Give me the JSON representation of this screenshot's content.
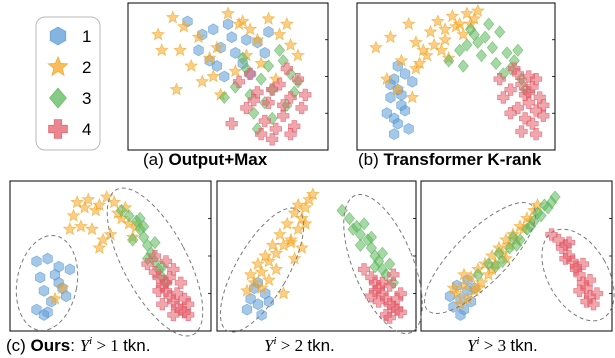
{
  "legend": {
    "entries": [
      {
        "label": "1",
        "marker": "hexagon",
        "color": "#5b9bd5"
      },
      {
        "label": "2",
        "marker": "star",
        "color": "#f5a623"
      },
      {
        "label": "3",
        "marker": "diamond",
        "color": "#5cb85c"
      },
      {
        "label": "4",
        "marker": "plus",
        "color": "#e35d6a"
      }
    ]
  },
  "captions": {
    "a": {
      "prefix": "(a) ",
      "bold": "Output+Max"
    },
    "b": {
      "prefix": "(b) ",
      "bold": "Transformer K-rank"
    },
    "c": {
      "prefix": "(c) ",
      "bold": "Ours",
      "sep": ": ",
      "sym": "Y",
      "sup": "i",
      "rel": " > 1 ",
      "unit": "tkn."
    },
    "d": {
      "sym": "Y",
      "sup": "i",
      "rel": " > 2 ",
      "unit": "tkn."
    },
    "e": {
      "sym": "Y",
      "sup": "i",
      "rel": " > 3 ",
      "unit": "tkn."
    }
  },
  "colors": {
    "1": "#5b9bd5",
    "2": "#f5a623",
    "3": "#5cb85c",
    "4": "#e35d6a"
  },
  "chart_data": [
    {
      "type": "scatter",
      "title": "(a) Output+Max",
      "xlim": [
        0,
        100
      ],
      "ylim": [
        0,
        100
      ],
      "grid": false,
      "legend": "none",
      "series": [
        {
          "name": "1",
          "x": [
            28,
            42,
            52,
            60,
            34,
            46,
            40,
            66,
            70,
            50,
            58,
            62,
            44,
            72,
            54,
            36,
            48
          ],
          "y": [
            92,
            86,
            80,
            78,
            70,
            72,
            62,
            76,
            68,
            90,
            60,
            52,
            58,
            84,
            68,
            82,
            50
          ]
        },
        {
          "name": "2",
          "x": [
            20,
            26,
            14,
            34,
            40,
            50,
            56,
            62,
            72,
            78,
            84,
            30,
            44,
            60,
            68,
            22,
            12,
            36,
            54,
            76,
            82,
            46,
            58,
            66,
            88,
            24,
            42
          ],
          "y": [
            95,
            88,
            70,
            80,
            64,
            98,
            90,
            86,
            94,
            82,
            74,
            58,
            72,
            66,
            60,
            40,
            82,
            46,
            54,
            48,
            90,
            36,
            92,
            78,
            66,
            70,
            50
          ]
        },
        {
          "name": "3",
          "x": [
            60,
            68,
            74,
            80,
            62,
            84,
            70,
            54,
            78,
            64,
            88,
            74,
            72,
            48,
            82,
            58,
            66,
            86
          ],
          "y": [
            56,
            48,
            40,
            62,
            36,
            52,
            30,
            42,
            70,
            22,
            46,
            18,
            58,
            34,
            28,
            64,
            10,
            38
          ]
        },
        {
          "name": "4",
          "x": [
            56,
            66,
            72,
            78,
            80,
            84,
            88,
            90,
            70,
            62,
            76,
            82,
            60,
            86,
            74,
            68,
            92,
            80,
            64,
            52,
            74,
            84
          ],
          "y": [
            46,
            38,
            30,
            44,
            20,
            34,
            48,
            26,
            16,
            52,
            10,
            56,
            26,
            12,
            40,
            6,
            36,
            28,
            32,
            14,
            2,
            6
          ]
        }
      ]
    },
    {
      "type": "scatter",
      "title": "(b) Transformer K-rank",
      "xlim": [
        0,
        100
      ],
      "ylim": [
        0,
        100
      ],
      "grid": false,
      "legend": "none",
      "series": [
        {
          "name": "1",
          "x": [
            16,
            18,
            14,
            20,
            12,
            16,
            22,
            18,
            24,
            20,
            14,
            22,
            18,
            16,
            26
          ],
          "y": [
            48,
            40,
            34,
            28,
            22,
            18,
            52,
            14,
            10,
            36,
            44,
            24,
            58,
            6,
            46
          ]
        },
        {
          "name": "2",
          "x": [
            6,
            14,
            20,
            24,
            28,
            32,
            36,
            40,
            44,
            48,
            52,
            56,
            60,
            28,
            34,
            38,
            44,
            50,
            12,
            18,
            26,
            30,
            42,
            54,
            58,
            46,
            62
          ],
          "y": [
            72,
            80,
            62,
            90,
            76,
            70,
            84,
            92,
            86,
            96,
            90,
            98,
            94,
            56,
            66,
            74,
            78,
            88,
            48,
            40,
            34,
            60,
            70,
            82,
            90,
            64,
            100
          ]
        },
        {
          "name": "3",
          "x": [
            46,
            52,
            56,
            60,
            64,
            66,
            70,
            72,
            74,
            78,
            80,
            82,
            84,
            86,
            68,
            76,
            62,
            58,
            88,
            54
          ],
          "y": [
            62,
            70,
            74,
            82,
            66,
            80,
            72,
            60,
            84,
            68,
            56,
            62,
            70,
            48,
            90,
            52,
            76,
            86,
            40,
            58
          ]
        },
        {
          "name": "4",
          "x": [
            74,
            80,
            84,
            86,
            88,
            90,
            92,
            94,
            96,
            98,
            84,
            88,
            92,
            82,
            76,
            90,
            94,
            86,
            80,
            98,
            94,
            90
          ],
          "y": [
            48,
            40,
            52,
            44,
            36,
            30,
            42,
            24,
            34,
            28,
            26,
            18,
            14,
            56,
            34,
            50,
            48,
            8,
            22,
            20,
            6,
            38
          ]
        }
      ]
    },
    {
      "type": "scatter",
      "title": "(c) Ours: Y^i > 1 tkn.",
      "xlim": [
        0,
        100
      ],
      "ylim": [
        0,
        100
      ],
      "grid": false,
      "legend": "none",
      "series": [
        {
          "name": "1",
          "x": [
            10,
            16,
            22,
            28,
            12,
            20,
            14,
            18,
            24,
            10,
            26,
            16,
            22,
            14
          ],
          "y": [
            46,
            48,
            42,
            40,
            34,
            36,
            24,
            16,
            26,
            10,
            20,
            8,
            30,
            6
          ]
        },
        {
          "name": "2",
          "x": [
            30,
            36,
            38,
            28,
            34,
            42,
            44,
            48,
            52,
            56,
            60,
            62,
            46,
            40,
            54,
            58,
            50,
            64,
            32,
            24,
            20,
            44
          ],
          "y": [
            80,
            86,
            92,
            70,
            72,
            84,
            88,
            94,
            90,
            78,
            74,
            64,
            62,
            70,
            82,
            86,
            66,
            72,
            90,
            26,
            18,
            56
          ]
        },
        {
          "name": "3",
          "x": [
            56,
            60,
            64,
            66,
            68,
            70,
            72,
            74,
            76,
            78,
            80,
            62,
            68,
            74,
            70,
            66,
            78
          ],
          "y": [
            84,
            80,
            76,
            70,
            64,
            58,
            52,
            46,
            40,
            34,
            30,
            62,
            72,
            60,
            48,
            78,
            42
          ]
        },
        {
          "name": "4",
          "x": [
            70,
            74,
            76,
            78,
            80,
            82,
            84,
            86,
            88,
            90,
            92,
            76,
            80,
            84,
            86,
            90,
            82,
            78,
            88,
            74,
            92,
            84,
            80
          ],
          "y": [
            44,
            38,
            34,
            28,
            24,
            20,
            16,
            12,
            10,
            8,
            6,
            24,
            30,
            40,
            22,
            18,
            34,
            14,
            30,
            50,
            14,
            6,
            46
          ]
        }
      ]
    },
    {
      "type": "scatter",
      "title": "Y^i > 2 tkn.",
      "xlim": [
        0,
        100
      ],
      "ylim": [
        0,
        100
      ],
      "grid": false,
      "legend": "none",
      "series": [
        {
          "name": "1",
          "x": [
            14,
            18,
            22,
            12,
            16,
            20,
            24,
            18
          ],
          "y": [
            18,
            14,
            22,
            10,
            26,
            6,
            16,
            30
          ]
        },
        {
          "name": "2",
          "x": [
            16,
            20,
            24,
            28,
            32,
            36,
            40,
            42,
            44,
            46,
            38,
            34,
            30,
            26,
            22,
            18,
            14,
            12,
            44,
            40,
            36,
            28,
            24,
            20,
            48,
            42,
            38,
            32
          ],
          "y": [
            30,
            38,
            46,
            52,
            58,
            62,
            70,
            78,
            86,
            92,
            82,
            74,
            66,
            58,
            50,
            44,
            36,
            24,
            74,
            88,
            60,
            40,
            32,
            26,
            96,
            56,
            48,
            22
          ]
        },
        {
          "name": "3",
          "x": [
            64,
            68,
            72,
            74,
            78,
            80,
            82,
            84,
            86,
            88,
            70,
            76,
            80,
            86,
            90,
            92,
            74,
            82
          ],
          "y": [
            84,
            78,
            72,
            66,
            62,
            56,
            50,
            46,
            40,
            36,
            70,
            74,
            64,
            52,
            44,
            30,
            58,
            42
          ]
        },
        {
          "name": "4",
          "x": [
            76,
            80,
            82,
            84,
            86,
            88,
            90,
            92,
            94,
            96,
            82,
            86,
            90,
            94,
            88,
            84,
            92,
            80,
            96,
            90
          ],
          "y": [
            40,
            34,
            30,
            26,
            22,
            18,
            14,
            12,
            10,
            8,
            24,
            30,
            28,
            18,
            6,
            16,
            36,
            20,
            22,
            4
          ]
        }
      ]
    },
    {
      "type": "scatter",
      "title": "Y^i > 3 tkn.",
      "xlim": [
        0,
        100
      ],
      "ylim": [
        0,
        100
      ],
      "grid": false,
      "legend": "none",
      "series": [
        {
          "name": "1",
          "x": [
            14,
            18,
            22,
            16,
            20,
            12,
            24,
            18,
            26,
            22
          ],
          "y": [
            12,
            18,
            24,
            28,
            10,
            20,
            16,
            6,
            26,
            32
          ]
        },
        {
          "name": "2",
          "x": [
            16,
            20,
            24,
            28,
            32,
            36,
            40,
            44,
            48,
            52,
            56,
            60,
            22,
            26,
            30,
            34,
            38,
            42,
            46,
            50,
            18,
            14,
            54,
            58,
            62,
            36,
            44,
            28,
            20
          ],
          "y": [
            22,
            28,
            34,
            40,
            44,
            50,
            56,
            62,
            66,
            72,
            78,
            84,
            18,
            24,
            30,
            36,
            44,
            52,
            58,
            62,
            14,
            26,
            70,
            76,
            88,
            40,
            48,
            26,
            36
          ]
        },
        {
          "name": "3",
          "x": [
            28,
            34,
            40,
            46,
            52,
            56,
            60,
            64,
            68,
            70,
            72,
            42,
            50,
            58,
            62,
            66,
            38,
            48
          ],
          "y": [
            36,
            44,
            52,
            56,
            62,
            70,
            76,
            80,
            86,
            90,
            94,
            46,
            58,
            72,
            82,
            88,
            42,
            64
          ]
        },
        {
          "name": "4",
          "x": [
            70,
            74,
            78,
            80,
            82,
            84,
            86,
            88,
            90,
            92,
            94,
            76,
            80,
            84,
            88,
            92,
            86,
            78,
            90,
            96
          ],
          "y": [
            66,
            62,
            58,
            50,
            46,
            42,
            36,
            30,
            26,
            20,
            14,
            56,
            60,
            40,
            44,
            32,
            24,
            48,
            16,
            22
          ]
        }
      ]
    }
  ]
}
